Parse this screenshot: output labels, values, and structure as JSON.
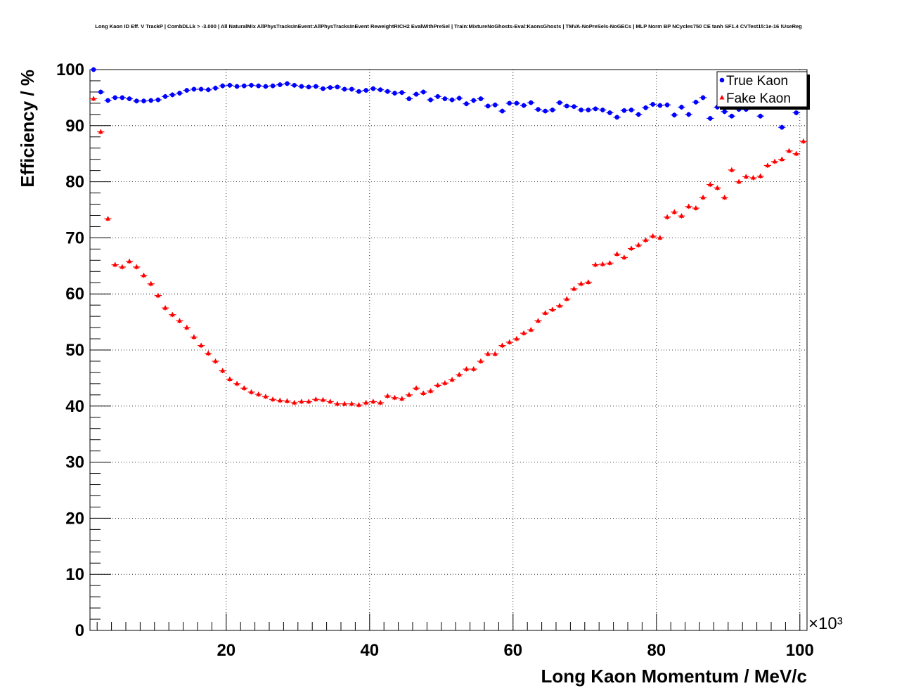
{
  "title": "Long Kaon ID Eff. V TrackP | CombDLLk > -3.000 | All NaturalMix AllPhysTracksInEvent:AllPhysTracksInEvent ReweightRICH2 EvalWithPreSel | Train:MixtureNoGhosts-Eval:KaonsGhosts | TMVA-NoPreSels-NoGECs | MLP Norm BP NCycles750 CE tanh SF1.4 CVTest15:1e-16 !UseReg",
  "chart_data": {
    "type": "scatter",
    "title": "Long Kaon ID Eff. V TrackP | CombDLLk > -3.000 | All NaturalMix AllPhysTracksInEvent:AllPhysTracksInEvent ReweightRICH2 EvalWithPreSel | Train:MixtureNoGhosts-Eval:KaonsGhosts | TMVA-NoPreSels-NoGECs | MLP Norm BP NCycles750 CE tanh SF1.4 CVTest15:1e-16 !UseReg",
    "xlabel": "Long Kaon Momentum / MeV/c",
    "ylabel": "Efficiency / %",
    "x_multiplier_label": "×10³",
    "xlim": [
      1000,
      101000
    ],
    "ylim": [
      0,
      100
    ],
    "xticks": [
      20000,
      40000,
      60000,
      80000,
      100000
    ],
    "xtick_labels": [
      "20",
      "40",
      "60",
      "80",
      "100"
    ],
    "yticks": [
      0,
      10,
      20,
      30,
      40,
      50,
      60,
      70,
      80,
      90,
      100
    ],
    "ytick_labels": [
      "0",
      "10",
      "20",
      "30",
      "40",
      "50",
      "60",
      "70",
      "80",
      "90",
      "100"
    ],
    "grid": true,
    "legend_position": "top-right",
    "x": [
      1500,
      2500,
      3500,
      4500,
      5500,
      6500,
      7500,
      8500,
      9500,
      10500,
      11500,
      12500,
      13500,
      14500,
      15500,
      16500,
      17500,
      18500,
      19500,
      20500,
      21500,
      22500,
      23500,
      24500,
      25500,
      26500,
      27500,
      28500,
      29500,
      30500,
      31500,
      32500,
      33500,
      34500,
      35500,
      36500,
      37500,
      38500,
      39500,
      40500,
      41500,
      42500,
      43500,
      44500,
      45500,
      46500,
      47500,
      48500,
      49500,
      50500,
      51500,
      52500,
      53500,
      54500,
      55500,
      56500,
      57500,
      58500,
      59500,
      60500,
      61500,
      62500,
      63500,
      64500,
      65500,
      66500,
      67500,
      68500,
      69500,
      70500,
      71500,
      72500,
      73500,
      74500,
      75500,
      76500,
      77500,
      78500,
      79500,
      80500,
      81500,
      82500,
      83500,
      84500,
      85500,
      86500,
      87500,
      88500,
      89500,
      90500,
      91500,
      92500,
      93500,
      94500,
      95500,
      96500,
      97500,
      98500,
      99500,
      100500
    ],
    "series": [
      {
        "name": "True Kaon",
        "color": "#0000ff",
        "marker": "circle",
        "values": [
          100,
          96,
          94.5,
          95,
          95,
          94.8,
          94.4,
          94.4,
          94.5,
          94.6,
          95.2,
          95.5,
          95.8,
          96.3,
          96.5,
          96.5,
          96.4,
          96.7,
          97.1,
          97.2,
          97,
          97.1,
          97.2,
          97.1,
          97,
          97.1,
          97.3,
          97.5,
          97.2,
          97,
          96.9,
          97,
          96.6,
          96.8,
          96.9,
          96.5,
          96.5,
          96.1,
          96.3,
          96.6,
          96.4,
          96.1,
          95.8,
          95.9,
          94.8,
          95.6,
          96,
          94.6,
          95.2,
          94.8,
          94.6,
          94.9,
          93.9,
          94.5,
          94.8,
          93.5,
          93.7,
          92.6,
          94,
          94,
          93.6,
          94.1,
          92.9,
          92.6,
          92.8,
          94.1,
          93.5,
          93.4,
          92.8,
          92.8,
          93,
          92.8,
          92.3,
          91.5,
          92.7,
          92.8,
          92,
          93.2,
          93.8,
          93.6,
          93.7,
          91.9,
          93.3,
          92,
          94.2,
          95,
          91.3,
          93.3,
          92.5,
          91.7,
          92.9,
          92.9,
          null,
          91.7,
          null,
          null,
          89.7,
          null,
          92.3,
          null
        ]
      },
      {
        "name": "Fake Kaon",
        "color": "#ff0000",
        "marker": "triangle",
        "values": [
          94.8,
          88.9,
          73.4,
          65.2,
          64.8,
          65.8,
          64.8,
          63.3,
          61.8,
          59.7,
          57.5,
          56.3,
          55.2,
          54,
          52.3,
          50.8,
          49.4,
          48,
          46.3,
          44.8,
          44,
          43.2,
          42.5,
          42.1,
          41.7,
          41.2,
          41,
          40.9,
          40.6,
          40.8,
          40.8,
          41.2,
          41.1,
          40.8,
          40.4,
          40.4,
          40.4,
          40.2,
          40.6,
          40.8,
          40.6,
          41.8,
          41.5,
          41.3,
          42,
          43.2,
          42.3,
          42.7,
          43.7,
          44.1,
          44.7,
          45.6,
          46.6,
          46.6,
          48,
          49.3,
          49.3,
          50.8,
          51.4,
          52,
          53,
          53.6,
          55.2,
          56.6,
          57.2,
          57.9,
          59.1,
          60.9,
          61.8,
          62.1,
          65.2,
          65.3,
          65.5,
          67.1,
          66.5,
          68.1,
          68.7,
          69.6,
          70.3,
          70,
          73.7,
          74.6,
          73.9,
          75.6,
          75.3,
          77.2,
          79.5,
          78.9,
          77.2,
          82.1,
          80,
          80.9,
          80.7,
          81,
          82.9,
          83.6,
          84,
          85.5,
          85,
          87.2
        ]
      }
    ]
  }
}
